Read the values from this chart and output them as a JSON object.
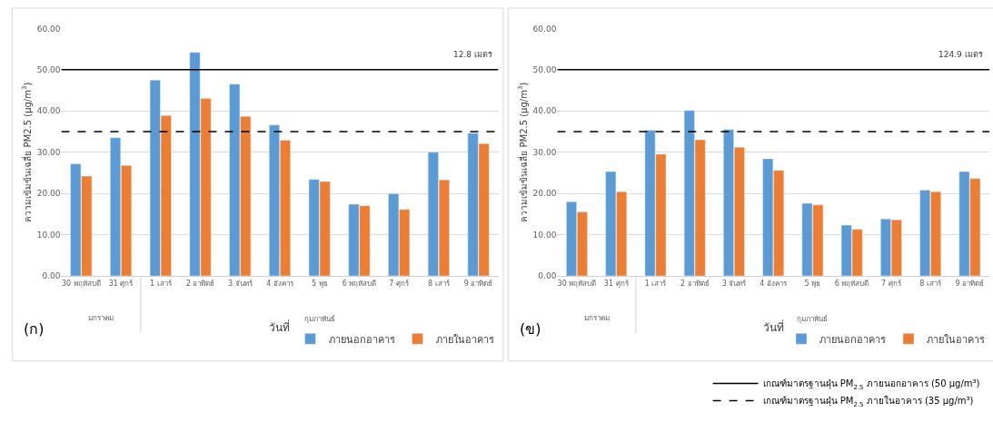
{
  "chart_data": [
    {
      "type": "bar",
      "xlabel": "วันที่",
      "ylabel": "ความเข้มข้นเฉลี่ย PM2.5 (µg/m$^{3}$)",
      "categories": [
        "30 พฤหัสบดี",
        "31 ศุกร์",
        "1 เสาร์",
        "2 อาทิตย์",
        "3 จันทร์",
        "4 อังคาร",
        "5 พุธ",
        "6 พฤหัสบดี",
        "7 ศุกร์",
        "8 เสาร์",
        "9 อาทิตย์"
      ],
      "series": [
        {
          "name": "ภายนอกอาคาร",
          "color": "#5b9bd5",
          "values": [
            27.2,
            33.5,
            47.5,
            54.2,
            46.5,
            36.6,
            23.4,
            17.4,
            19.9,
            30.0,
            34.6
          ]
        },
        {
          "name": "ภายในอาคาร",
          "color": "#ed7d31",
          "values": [
            24.2,
            26.8,
            38.9,
            43.0,
            38.7,
            32.9,
            22.9,
            17.0,
            16.1,
            23.3,
            32.1
          ]
        }
      ],
      "ylim": [
        0,
        60
      ],
      "yticks": [
        {
          "value": 0,
          "label": "0.00"
        },
        {
          "value": 10,
          "label": "10.00"
        },
        {
          "value": 20,
          "label": "20.00"
        },
        {
          "value": 30,
          "label": "30.00"
        },
        {
          "value": 40,
          "label": "40.00"
        },
        {
          "value": 50,
          "label": "50.00"
        },
        {
          "value": 60,
          "label": "60.00"
        }
      ],
      "ref_lines": [
        {
          "axis": "y",
          "value": 50,
          "color": "#000000",
          "line_style": "solid"
        },
        {
          "axis": "y",
          "value": 35,
          "color": "#000000",
          "line_style": "dashed"
        }
      ],
      "annotations": [
        "(ก)",
        "12.8 เมตร",
        "มกราคม",
        "กุมภาพันธ์"
      ],
      "grid": "y",
      "legend": "bottom right"
    },
    {
      "type": "bar",
      "xlabel": "วันที่",
      "ylabel": "ความเข้มข้นเฉลี่ย PM2.5 (µg/m$^{3}$)",
      "categories": [
        "30 พฤหัสบดี",
        "31 ศุกร์",
        "1 เสาร์",
        "2 อาทิตย์",
        "3 จันทร์",
        "4 อังคาร",
        "5 พุธ",
        "6 พฤหัสบดี",
        "7 ศุกร์",
        "8 เสาร์",
        "9 อาทิตย์"
      ],
      "series": [
        {
          "name": "ภายนอกอาคาร",
          "color": "#5b9bd5",
          "values": [
            18.0,
            25.3,
            35.3,
            40.1,
            35.5,
            28.4,
            17.6,
            12.3,
            13.8,
            20.8,
            25.3
          ]
        },
        {
          "name": "ภายในอาคาร",
          "color": "#ed7d31",
          "values": [
            15.5,
            20.4,
            29.5,
            33.0,
            31.2,
            25.6,
            17.2,
            11.3,
            13.6,
            20.4,
            23.6
          ]
        }
      ],
      "ylim": [
        0,
        60
      ],
      "yticks": [
        {
          "value": 0,
          "label": "0.00"
        },
        {
          "value": 10,
          "label": "10.00"
        },
        {
          "value": 20,
          "label": "20.00"
        },
        {
          "value": 30,
          "label": "30.00"
        },
        {
          "value": 40,
          "label": "40.00"
        },
        {
          "value": 50,
          "label": "50.00"
        },
        {
          "value": 60,
          "label": "60.00"
        }
      ],
      "ref_lines": [
        {
          "axis": "y",
          "value": 50,
          "color": "#000000",
          "line_style": "solid",
          "label": "เกณฑ์มาตรฐานฝุ่น PM$_{2.5}$ ภายนอกอาคาร (50 µg/m³)"
        },
        {
          "axis": "y",
          "value": 35,
          "color": "#000000",
          "line_style": "dashed",
          "label": "เกณฑ์มาตรฐานฝุ่น PM$_{2.5}$ ภายในอาคาร (35 µg/m³)"
        }
      ],
      "annotations": [
        "(ข)",
        "124.9 เมตร",
        "มกราคม",
        "กุมภาพันธ์"
      ],
      "grid": "y",
      "legend": "bottom right"
    }
  ]
}
